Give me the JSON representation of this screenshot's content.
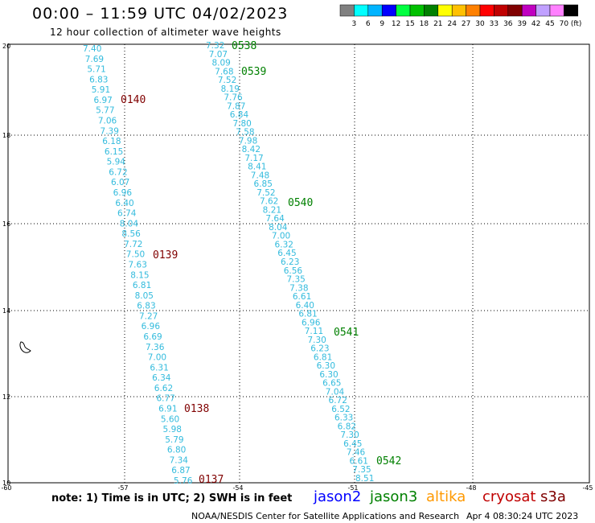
{
  "title": "00:00 – 11:59 UTC 04/02/2023",
  "subtitle": "12 hour collection of altimeter wave heights",
  "colorbar": {
    "unit": "(ft)",
    "ticks": [
      "3",
      "6",
      "9",
      "12",
      "15",
      "18",
      "21",
      "24",
      "27",
      "30",
      "33",
      "36",
      "39",
      "42",
      "45",
      "70"
    ],
    "colors": [
      "#808080",
      "#00ffff",
      "#00b4ff",
      "#0000ff",
      "#00ff40",
      "#00c000",
      "#008000",
      "#ffff00",
      "#ffc000",
      "#ff8000",
      "#ff0000",
      "#c00000",
      "#800000",
      "#c000c0",
      "#c0a0ff",
      "#ff80ff",
      "#000000"
    ]
  },
  "axes": {
    "x_ticks": [
      "-60",
      "-57",
      "-54",
      "-51",
      "-48",
      "-45"
    ],
    "y_ticks": [
      "20",
      "18",
      "16",
      "14",
      "12",
      "10"
    ]
  },
  "tracks": [
    {
      "name": "track-left",
      "color": "#33bbdd",
      "values": [
        "7.40",
        "7.69",
        "5.71",
        "6.83",
        "5.91",
        "6.97",
        "5.77",
        "7.06",
        "7.39",
        "6.18",
        "6.15",
        "5.94",
        "6.72",
        "6.07",
        "6.96",
        "6.40",
        "6.74",
        "8.04",
        "8.56",
        "7.72",
        "7.50",
        "7.63",
        "8.15",
        "6.81",
        "8.05",
        "6.83",
        "7.27",
        "6.96",
        "6.69",
        "7.36",
        "7.00",
        "6.31",
        "6.34",
        "6.62",
        "6.77",
        "6.91",
        "5.60",
        "5.98",
        "5.79",
        "6.80",
        "7.34",
        "6.87",
        "5.76"
      ]
    },
    {
      "name": "track-right",
      "color": "#33bbdd",
      "values": [
        "7.32",
        "7.07",
        "8.09",
        "7.68",
        "7.52",
        "8.19",
        "7.76",
        "7.87",
        "6.84",
        "7.80",
        "7.58",
        "7.98",
        "8.42",
        "7.17",
        "8.41",
        "7.48",
        "6.85",
        "7.52",
        "7.62",
        "8.21",
        "7.64",
        "8.04",
        "7.00",
        "6.32",
        "6.45",
        "6.23",
        "6.56",
        "7.35",
        "7.38",
        "6.61",
        "6.40",
        "6.81",
        "6.96",
        "7.11",
        "7.30",
        "6.23",
        "6.81",
        "6.30",
        "6.30",
        "6.65",
        "7.04",
        "6.72",
        "6.52",
        "6.33",
        "6.82",
        "7.30",
        "6.45",
        "7.46",
        "6.61",
        "7.35",
        "8.51"
      ]
    }
  ],
  "time_labels": [
    {
      "text": "0140",
      "color": "#800000"
    },
    {
      "text": "0139",
      "color": "#800000"
    },
    {
      "text": "0138",
      "color": "#800000"
    },
    {
      "text": "0137",
      "color": "#800000"
    },
    {
      "text": "0538",
      "color": "#008000"
    },
    {
      "text": "0539",
      "color": "#008000"
    },
    {
      "text": "0540",
      "color": "#008000"
    },
    {
      "text": "0541",
      "color": "#008000"
    },
    {
      "text": "0542",
      "color": "#008000"
    }
  ],
  "note": "note: 1) Time is in UTC; 2) SWH is in feet",
  "satellites": [
    {
      "name": "jason2",
      "color": "#0000ff"
    },
    {
      "name": "jason3",
      "color": "#008000"
    },
    {
      "name": "altika",
      "color": "#ff9900"
    },
    {
      "name": "cryosat",
      "color": "#c00000"
    },
    {
      "name": "s3a",
      "color": "#800000"
    }
  ],
  "credit": "NOAA/NESDIS Center for Satellite Applications and Research",
  "timestamp": "Apr  4 08:30:24 UTC 2023",
  "icons": {
    "island": "island-outline-icon"
  }
}
